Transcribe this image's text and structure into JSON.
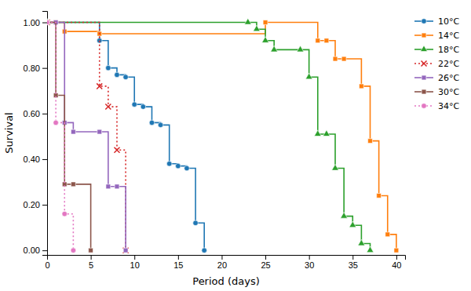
{
  "chart_data": {
    "type": "step",
    "x_label": "Period (days)",
    "y_label": "Survival",
    "xlim": [
      0,
      41
    ],
    "ylim": [
      -0.02,
      1.05
    ],
    "xticks": [
      0,
      5,
      10,
      15,
      20,
      25,
      30,
      35,
      40
    ],
    "yticks": [
      {
        "value": 0.0,
        "label": "0.00"
      },
      {
        "value": 0.2,
        "label": "0.20"
      },
      {
        "value": 0.4,
        "label": "0.40"
      },
      {
        "value": 0.6,
        "label": "0.60"
      },
      {
        "value": 0.8,
        "label": "0.80"
      },
      {
        "value": 1.0,
        "label": "1.00"
      }
    ],
    "legend": "upper-right",
    "series": [
      {
        "name": "10°C",
        "marker": "circle",
        "line_style": "solid",
        "x": [
          0,
          1,
          6,
          7,
          8,
          9,
          10,
          11,
          12,
          13,
          14,
          15,
          16,
          17,
          18
        ],
        "values": [
          1.0,
          1.0,
          0.92,
          0.8,
          0.77,
          0.76,
          0.64,
          0.63,
          0.56,
          0.55,
          0.38,
          0.37,
          0.36,
          0.12,
          0.0
        ]
      },
      {
        "name": "14°C",
        "marker": "square",
        "line_style": "solid",
        "x": [
          0,
          1,
          2,
          6,
          25,
          31,
          32,
          33,
          34,
          36,
          37,
          38,
          39,
          40
        ],
        "values": [
          1.0,
          1.0,
          0.96,
          0.95,
          1.0,
          0.92,
          0.92,
          0.84,
          0.84,
          0.72,
          0.48,
          0.24,
          0.07,
          0.0
        ]
      },
      {
        "name": "18°C",
        "marker": "triangle",
        "line_style": "solid",
        "x": [
          0,
          23,
          24,
          25,
          26,
          29,
          30,
          31,
          32,
          33,
          34,
          35,
          36,
          37
        ],
        "values": [
          1.0,
          1.0,
          0.97,
          0.92,
          0.88,
          0.88,
          0.76,
          0.51,
          0.51,
          0.36,
          0.15,
          0.11,
          0.03,
          0.0
        ]
      },
      {
        "name": "22°C",
        "marker": "x",
        "line_style": "dotted",
        "x": [
          0,
          6,
          7,
          8,
          9
        ],
        "values": [
          1.0,
          0.72,
          0.63,
          0.44,
          0.0
        ]
      },
      {
        "name": "26°C",
        "marker": "square",
        "line_style": "solid",
        "x": [
          0,
          1,
          2,
          3,
          6,
          7,
          8,
          9
        ],
        "values": [
          1.0,
          1.0,
          0.56,
          0.52,
          0.52,
          0.28,
          0.28,
          0.0
        ]
      },
      {
        "name": "30°C",
        "marker": "square",
        "line_style": "solid",
        "x": [
          0,
          1,
          2,
          3,
          5
        ],
        "values": [
          1.0,
          0.68,
          0.29,
          0.29,
          0.0
        ]
      },
      {
        "name": "34°C",
        "marker": "circle",
        "line_style": "dotted",
        "x": [
          0,
          1,
          2,
          3
        ],
        "values": [
          1.0,
          0.56,
          0.16,
          0.0
        ]
      }
    ]
  }
}
